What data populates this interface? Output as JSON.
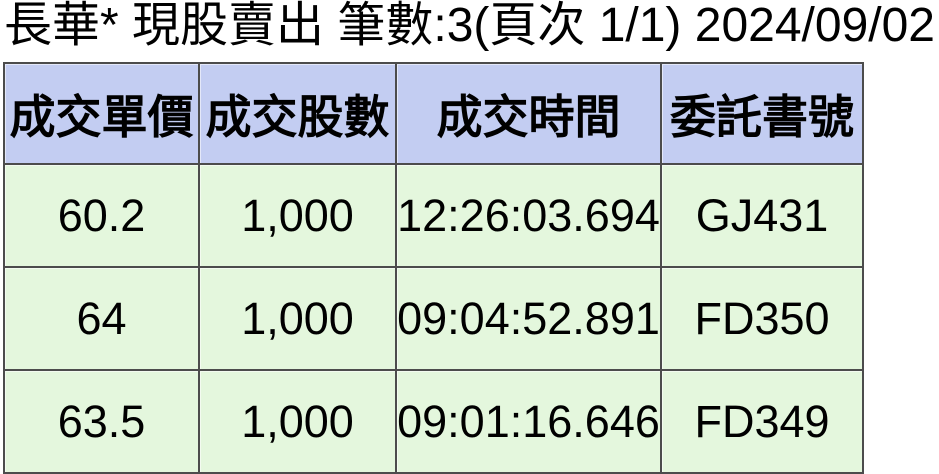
{
  "title": "長華* 現股賣出 筆數:3(頁次 1/1) 2024/09/02",
  "title_parts": {
    "stock_name": "長華*",
    "trade_type": "現股賣出",
    "record_count_label": "筆數:3",
    "page_label": "頁次 1/1",
    "date": "2024/09/02"
  },
  "table": {
    "columns": [
      "成交單價",
      "成交股數",
      "成交時間",
      "委託書號"
    ],
    "rows": [
      [
        "60.2",
        "1,000",
        "12:26:03.694",
        "GJ431"
      ],
      [
        "64",
        "1,000",
        "09:04:52.891",
        "FD350"
      ],
      [
        "63.5",
        "1,000",
        "09:01:16.646",
        "FD349"
      ]
    ]
  },
  "colors": {
    "header_bg": "#c3cdf2",
    "row_bg": "#e4f7dd",
    "border": "#4c4c4c",
    "text": "#000000",
    "background": "#ffffff"
  }
}
